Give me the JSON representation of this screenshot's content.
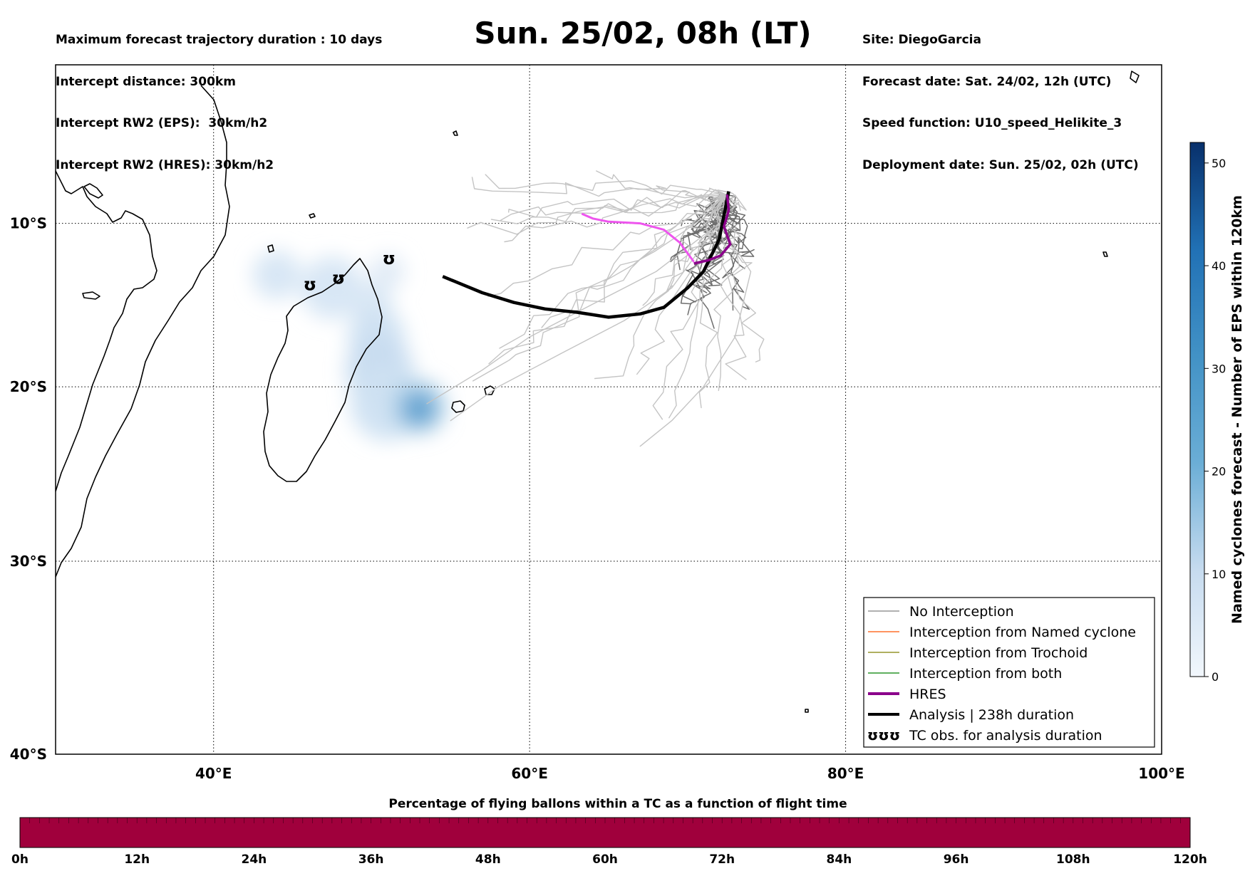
{
  "header": {
    "left": [
      "Maximum forecast trajectory duration : 10 days",
      "Intercept distance: 300km",
      "Intercept RW2 (EPS):  30km/h2",
      "Intercept RW2 (HRES): 30km/h2"
    ],
    "title": "Sun. 25/02, 08h (LT)",
    "right": [
      "Site: DiegoGarcia",
      "Forecast date: Sat. 24/02, 12h (UTC)",
      "Speed function: U10_speed_Helikite_3",
      "Deployment date: Sun. 25/02, 02h (UTC)"
    ]
  },
  "map": {
    "lon_range": [
      30,
      100
    ],
    "lat_range": [
      -40,
      0
    ],
    "lon_ticks": [
      {
        "v": 40,
        "label": "40°E"
      },
      {
        "v": 60,
        "label": "60°E"
      },
      {
        "v": 80,
        "label": "80°E"
      },
      {
        "v": 100,
        "label": "100°E"
      }
    ],
    "lat_ticks": [
      {
        "v": -10,
        "label": "10°S"
      },
      {
        "v": -20,
        "label": "20°S"
      },
      {
        "v": -30,
        "label": "30°S"
      },
      {
        "v": -40,
        "label": "40°S"
      }
    ],
    "grid": "dotted",
    "colors": {
      "no_interception": "#808080",
      "named_cyclone": "#ff5500",
      "trochoid": "#808000",
      "both": "#008000",
      "hres": "#8b008b",
      "analysis": "#000000"
    }
  },
  "tracks": {
    "analysis": [
      [
        54.5,
        -13.3
      ],
      [
        55.5,
        -13.7
      ],
      [
        57,
        -14.3
      ],
      [
        59,
        -14.9
      ],
      [
        61,
        -15.3
      ],
      [
        63,
        -15.5
      ],
      [
        65,
        -15.8
      ],
      [
        67,
        -15.6
      ],
      [
        68.5,
        -15.2
      ],
      [
        70,
        -14
      ],
      [
        71,
        -13
      ],
      [
        71.5,
        -12
      ],
      [
        72,
        -11
      ],
      [
        72.2,
        -10
      ],
      [
        72.4,
        -9
      ],
      [
        72.6,
        -8
      ]
    ],
    "hres": [
      [
        72.5,
        -8.2
      ],
      [
        72.6,
        -9.2
      ],
      [
        72.3,
        -10.2
      ],
      [
        72.7,
        -11.3
      ],
      [
        72.1,
        -12
      ],
      [
        71.3,
        -12.3
      ],
      [
        70.4,
        -12.5
      ]
    ],
    "hres_light": [
      [
        63.3,
        -9.4
      ],
      [
        64,
        -9.7
      ],
      [
        65,
        -9.9
      ],
      [
        67,
        -10
      ],
      [
        68.5,
        -10.4
      ],
      [
        69.5,
        -11.2
      ],
      [
        70.4,
        -12.4
      ]
    ]
  },
  "tc_markers": [
    [
      46.1,
      -13.8
    ],
    [
      47.9,
      -13.4
    ],
    [
      51.1,
      -12.2
    ]
  ],
  "legend": [
    {
      "label": "No Interception",
      "color": "#808080",
      "width": 1.3
    },
    {
      "label": "Interception from Named cyclone",
      "color": "#ff5500",
      "width": 1.3
    },
    {
      "label": "Interception from Trochoid",
      "color": "#808000",
      "width": 1.3
    },
    {
      "label": "Interception from both",
      "color": "#008000",
      "width": 1.3
    },
    {
      "label": "HRES",
      "color": "#8b008b",
      "width": 4
    },
    {
      "label": "Analysis | 238h duration",
      "color": "#000000",
      "width": 4
    },
    {
      "label": "TC obs. for analysis duration",
      "symbol": "ʊʊʊ"
    }
  ],
  "colorbar_eps": {
    "label": "Named cyclones forecast - Number of EPS within 120km",
    "min": 0,
    "max": 52,
    "ticks": [
      {
        "v": 0,
        "label": "0"
      },
      {
        "v": 10,
        "label": "10"
      },
      {
        "v": 20,
        "label": "20"
      },
      {
        "v": 30,
        "label": "30"
      },
      {
        "v": 40,
        "label": "40"
      },
      {
        "v": 50,
        "label": "50"
      }
    ]
  },
  "flight_bar": {
    "title": "Percentage of flying ballons within a TC as a function of flight time",
    "color": "#a0003c",
    "ticks": [
      "0h",
      "12h",
      "24h",
      "36h",
      "48h",
      "60h",
      "72h",
      "84h",
      "96h",
      "108h",
      "120h"
    ]
  }
}
